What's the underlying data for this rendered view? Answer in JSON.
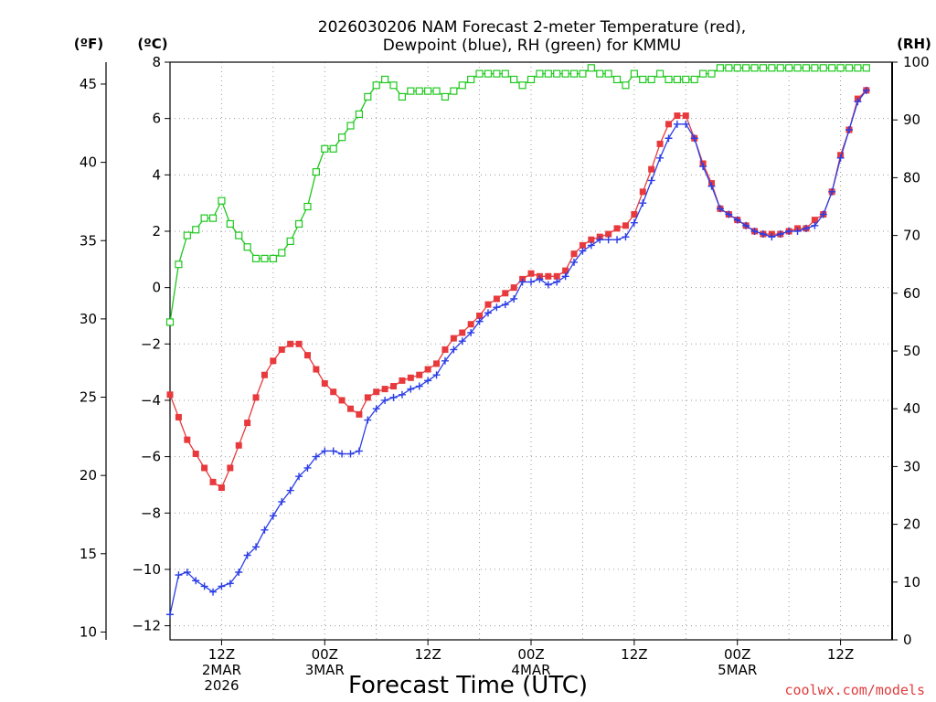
{
  "title_lines": [
    "2026030206 NAM Forecast 2-meter Temperature (red),",
    "Dewpoint (blue), RH (green) for KMMU"
  ],
  "units": {
    "left_f": "(ºF)",
    "left_c": "(ºC)",
    "right_rh": "(RH)"
  },
  "axis_f_ticks": [
    "10",
    "15",
    "20",
    "25",
    "30",
    "35",
    "40",
    "45"
  ],
  "axis_c_ticks": [
    "-12",
    "-10",
    "-8",
    "-6",
    "-4",
    "-2",
    "0",
    "2",
    "4",
    "6",
    "8"
  ],
  "axis_rh_ticks": [
    "0",
    "10",
    "20",
    "30",
    "40",
    "50",
    "60",
    "70",
    "80",
    "90",
    "100"
  ],
  "x_tick_labels": [
    {
      "hour": 12,
      "lines": [
        "12Z",
        "2MAR",
        "2026"
      ]
    },
    {
      "hour": 24,
      "lines": [
        "00Z",
        "3MAR"
      ]
    },
    {
      "hour": 36,
      "lines": [
        "12Z"
      ]
    },
    {
      "hour": 48,
      "lines": [
        "00Z",
        "4MAR"
      ]
    },
    {
      "hour": 60,
      "lines": [
        "12Z"
      ]
    },
    {
      "hour": 72,
      "lines": [
        "00Z",
        "5MAR"
      ]
    },
    {
      "hour": 84,
      "lines": [
        "12Z"
      ]
    }
  ],
  "xlabel": "Forecast Time (UTC)",
  "credit": "coolwx.com/models",
  "colors": {
    "temperature": "#e8393c",
    "dewpoint": "#2b3ee6",
    "rh": "#1ec81e",
    "grid": "#9a9a9a"
  },
  "chart_data": {
    "type": "line",
    "x_unit": "forecast hour (UTC) from 2026-03-02 06Z",
    "xlim": [
      6,
      90
    ],
    "ylim_celsius": [
      -12.5,
      8
    ],
    "ylim_rh": [
      0,
      100
    ],
    "series": [
      {
        "name": "Temperature",
        "axis": "celsius",
        "marker": "filled-square",
        "values": [
          [
            6,
            -3.8
          ],
          [
            7,
            -4.6
          ],
          [
            8,
            -5.4
          ],
          [
            9,
            -5.9
          ],
          [
            10,
            -6.4
          ],
          [
            11,
            -6.9
          ],
          [
            12,
            -7.1
          ],
          [
            13,
            -6.4
          ],
          [
            14,
            -5.6
          ],
          [
            15,
            -4.8
          ],
          [
            16,
            -3.9
          ],
          [
            17,
            -3.1
          ],
          [
            18,
            -2.6
          ],
          [
            19,
            -2.2
          ],
          [
            20,
            -2.0
          ],
          [
            21,
            -2.0
          ],
          [
            22,
            -2.4
          ],
          [
            23,
            -2.9
          ],
          [
            24,
            -3.4
          ],
          [
            25,
            -3.7
          ],
          [
            26,
            -4.0
          ],
          [
            27,
            -4.3
          ],
          [
            28,
            -4.5
          ],
          [
            29,
            -3.9
          ],
          [
            30,
            -3.7
          ],
          [
            31,
            -3.6
          ],
          [
            32,
            -3.5
          ],
          [
            33,
            -3.3
          ],
          [
            34,
            -3.2
          ],
          [
            35,
            -3.1
          ],
          [
            36,
            -2.9
          ],
          [
            37,
            -2.7
          ],
          [
            38,
            -2.2
          ],
          [
            39,
            -1.8
          ],
          [
            40,
            -1.6
          ],
          [
            41,
            -1.3
          ],
          [
            42,
            -1.0
          ],
          [
            43,
            -0.6
          ],
          [
            44,
            -0.4
          ],
          [
            45,
            -0.2
          ],
          [
            46,
            0.0
          ],
          [
            47,
            0.3
          ],
          [
            48,
            0.5
          ],
          [
            49,
            0.4
          ],
          [
            50,
            0.4
          ],
          [
            51,
            0.4
          ],
          [
            52,
            0.6
          ],
          [
            53,
            1.2
          ],
          [
            54,
            1.5
          ],
          [
            55,
            1.7
          ],
          [
            56,
            1.8
          ],
          [
            57,
            1.9
          ],
          [
            58,
            2.1
          ],
          [
            59,
            2.2
          ],
          [
            60,
            2.6
          ],
          [
            61,
            3.4
          ],
          [
            62,
            4.2
          ],
          [
            63,
            5.1
          ],
          [
            64,
            5.8
          ],
          [
            65,
            6.1
          ],
          [
            66,
            6.1
          ],
          [
            67,
            5.3
          ],
          [
            68,
            4.4
          ],
          [
            69,
            3.7
          ],
          [
            70,
            2.8
          ],
          [
            71,
            2.6
          ],
          [
            72,
            2.4
          ],
          [
            73,
            2.2
          ],
          [
            74,
            2.0
          ],
          [
            75,
            1.9
          ],
          [
            76,
            1.9
          ],
          [
            77,
            1.9
          ],
          [
            78,
            2.0
          ],
          [
            79,
            2.1
          ],
          [
            80,
            2.1
          ],
          [
            81,
            2.4
          ],
          [
            82,
            2.6
          ],
          [
            83,
            3.4
          ],
          [
            84,
            4.7
          ],
          [
            85,
            5.6
          ],
          [
            86,
            6.7
          ],
          [
            87,
            7.0
          ]
        ]
      },
      {
        "name": "Dewpoint",
        "axis": "celsius",
        "marker": "plus",
        "values": [
          [
            6,
            -11.6
          ],
          [
            7,
            -10.2
          ],
          [
            8,
            -10.1
          ],
          [
            9,
            -10.4
          ],
          [
            10,
            -10.6
          ],
          [
            11,
            -10.8
          ],
          [
            12,
            -10.6
          ],
          [
            13,
            -10.5
          ],
          [
            14,
            -10.1
          ],
          [
            15,
            -9.5
          ],
          [
            16,
            -9.2
          ],
          [
            17,
            -8.6
          ],
          [
            18,
            -8.1
          ],
          [
            19,
            -7.6
          ],
          [
            20,
            -7.2
          ],
          [
            21,
            -6.7
          ],
          [
            22,
            -6.4
          ],
          [
            23,
            -6.0
          ],
          [
            24,
            -5.8
          ],
          [
            25,
            -5.8
          ],
          [
            26,
            -5.9
          ],
          [
            27,
            -5.9
          ],
          [
            28,
            -5.8
          ],
          [
            29,
            -4.7
          ],
          [
            30,
            -4.3
          ],
          [
            31,
            -4.0
          ],
          [
            32,
            -3.9
          ],
          [
            33,
            -3.8
          ],
          [
            34,
            -3.6
          ],
          [
            35,
            -3.5
          ],
          [
            36,
            -3.3
          ],
          [
            37,
            -3.1
          ],
          [
            38,
            -2.6
          ],
          [
            39,
            -2.2
          ],
          [
            40,
            -1.9
          ],
          [
            41,
            -1.6
          ],
          [
            42,
            -1.2
          ],
          [
            43,
            -0.9
          ],
          [
            44,
            -0.7
          ],
          [
            45,
            -0.6
          ],
          [
            46,
            -0.4
          ],
          [
            47,
            0.2
          ],
          [
            48,
            0.2
          ],
          [
            49,
            0.3
          ],
          [
            50,
            0.1
          ],
          [
            51,
            0.2
          ],
          [
            52,
            0.4
          ],
          [
            53,
            0.9
          ],
          [
            54,
            1.3
          ],
          [
            55,
            1.5
          ],
          [
            56,
            1.7
          ],
          [
            57,
            1.7
          ],
          [
            58,
            1.7
          ],
          [
            59,
            1.8
          ],
          [
            60,
            2.3
          ],
          [
            61,
            3.0
          ],
          [
            62,
            3.8
          ],
          [
            63,
            4.6
          ],
          [
            64,
            5.3
          ],
          [
            65,
            5.8
          ],
          [
            66,
            5.8
          ],
          [
            67,
            5.3
          ],
          [
            68,
            4.3
          ],
          [
            69,
            3.6
          ],
          [
            70,
            2.8
          ],
          [
            71,
            2.6
          ],
          [
            72,
            2.4
          ],
          [
            73,
            2.2
          ],
          [
            74,
            2.0
          ],
          [
            75,
            1.9
          ],
          [
            76,
            1.8
          ],
          [
            77,
            1.9
          ],
          [
            78,
            2.0
          ],
          [
            79,
            2.0
          ],
          [
            80,
            2.1
          ],
          [
            81,
            2.2
          ],
          [
            82,
            2.6
          ],
          [
            83,
            3.4
          ],
          [
            84,
            4.6
          ],
          [
            85,
            5.6
          ],
          [
            86,
            6.6
          ],
          [
            87,
            7.0
          ]
        ]
      },
      {
        "name": "RH",
        "axis": "rh",
        "marker": "open-square",
        "values": [
          [
            6,
            55
          ],
          [
            7,
            65
          ],
          [
            8,
            70
          ],
          [
            9,
            71
          ],
          [
            10,
            73
          ],
          [
            11,
            73
          ],
          [
            12,
            76
          ],
          [
            13,
            72
          ],
          [
            14,
            70
          ],
          [
            15,
            68
          ],
          [
            16,
            66
          ],
          [
            17,
            66
          ],
          [
            18,
            66
          ],
          [
            19,
            67
          ],
          [
            20,
            69
          ],
          [
            21,
            72
          ],
          [
            22,
            75
          ],
          [
            23,
            81
          ],
          [
            24,
            85
          ],
          [
            25,
            85
          ],
          [
            26,
            87
          ],
          [
            27,
            89
          ],
          [
            28,
            91
          ],
          [
            29,
            94
          ],
          [
            30,
            96
          ],
          [
            31,
            97
          ],
          [
            32,
            96
          ],
          [
            33,
            94
          ],
          [
            34,
            95
          ],
          [
            35,
            95
          ],
          [
            36,
            95
          ],
          [
            37,
            95
          ],
          [
            38,
            94
          ],
          [
            39,
            95
          ],
          [
            40,
            96
          ],
          [
            41,
            97
          ],
          [
            42,
            98
          ],
          [
            43,
            98
          ],
          [
            44,
            98
          ],
          [
            45,
            98
          ],
          [
            46,
            97
          ],
          [
            47,
            96
          ],
          [
            48,
            97
          ],
          [
            49,
            98
          ],
          [
            50,
            98
          ],
          [
            51,
            98
          ],
          [
            52,
            98
          ],
          [
            53,
            98
          ],
          [
            54,
            98
          ],
          [
            55,
            99
          ],
          [
            56,
            98
          ],
          [
            57,
            98
          ],
          [
            58,
            97
          ],
          [
            59,
            96
          ],
          [
            60,
            98
          ],
          [
            61,
            97
          ],
          [
            62,
            97
          ],
          [
            63,
            98
          ],
          [
            64,
            97
          ],
          [
            65,
            97
          ],
          [
            66,
            97
          ],
          [
            67,
            97
          ],
          [
            68,
            98
          ],
          [
            69,
            98
          ],
          [
            70,
            99
          ],
          [
            71,
            99
          ],
          [
            72,
            99
          ],
          [
            73,
            99
          ],
          [
            74,
            99
          ],
          [
            75,
            99
          ],
          [
            76,
            99
          ],
          [
            77,
            99
          ],
          [
            78,
            99
          ],
          [
            79,
            99
          ],
          [
            80,
            99
          ],
          [
            81,
            99
          ],
          [
            82,
            99
          ],
          [
            83,
            99
          ],
          [
            84,
            99
          ],
          [
            85,
            99
          ],
          [
            86,
            99
          ],
          [
            87,
            99
          ]
        ]
      }
    ]
  }
}
